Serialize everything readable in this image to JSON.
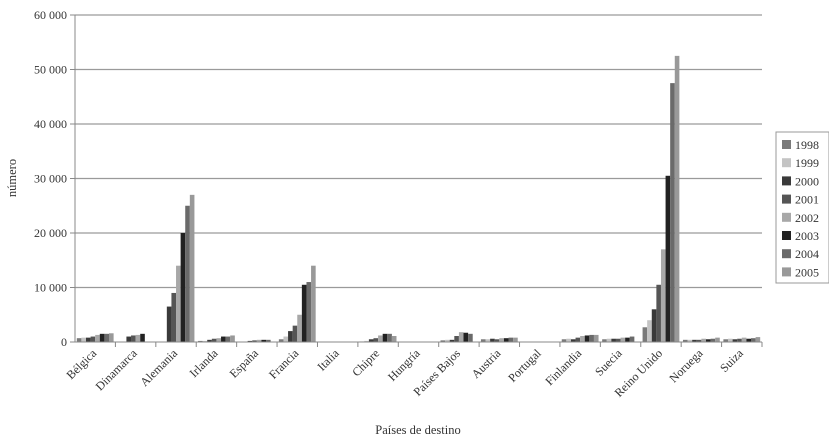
{
  "chart_data": {
    "type": "bar",
    "xlabel": "Países de destino",
    "ylabel": "número",
    "ylim": [
      0,
      60000
    ],
    "yticks": [
      "0",
      "10 000",
      "20 000",
      "30 000",
      "40 000",
      "50 000",
      "60 000"
    ],
    "grid": true,
    "legend_position": "right",
    "categories": [
      "Bélgica",
      "Dinamarca",
      "Alemania",
      "Irlanda",
      "España",
      "Francia",
      "Italia",
      "Chipre",
      "Hungría",
      "Países Bajos",
      "Austria",
      "Portugal",
      "Finlandia",
      "Suecia",
      "Reino Unido",
      "Noruega",
      "Suiza"
    ],
    "series": [
      {
        "name": "1998",
        "color": "#7a7a7a",
        "values": [
          700,
          0,
          0,
          200,
          0,
          500,
          0,
          100,
          0,
          300,
          500,
          0,
          500,
          500,
          2700,
          400,
          500
        ]
      },
      {
        "name": "1999",
        "color": "#c4c4c4",
        "values": [
          800,
          0,
          0,
          200,
          0,
          1000,
          0,
          200,
          0,
          400,
          500,
          0,
          600,
          600,
          4000,
          400,
          600
        ]
      },
      {
        "name": "2000",
        "color": "#3a3a3a",
        "values": [
          800,
          1000,
          6500,
          400,
          200,
          2000,
          0,
          500,
          0,
          400,
          600,
          0,
          500,
          600,
          6000,
          400,
          500
        ]
      },
      {
        "name": "2001",
        "color": "#555555",
        "values": [
          1000,
          1200,
          9000,
          600,
          300,
          3000,
          0,
          700,
          0,
          1100,
          500,
          0,
          800,
          600,
          10500,
          400,
          600
        ]
      },
      {
        "name": "2002",
        "color": "#a8a8a8",
        "values": [
          1300,
          1300,
          14000,
          700,
          400,
          5000,
          0,
          1200,
          0,
          1800,
          700,
          0,
          1100,
          800,
          17000,
          600,
          800
        ]
      },
      {
        "name": "2003",
        "color": "#222222",
        "values": [
          1500,
          1500,
          20000,
          1000,
          400,
          10500,
          0,
          1500,
          0,
          1700,
          700,
          0,
          1200,
          800,
          30500,
          500,
          600
        ]
      },
      {
        "name": "2004",
        "color": "#6a6a6a",
        "values": [
          1500,
          0,
          25000,
          1000,
          400,
          11000,
          0,
          1500,
          0,
          1500,
          800,
          0,
          1300,
          1000,
          47500,
          600,
          700
        ]
      },
      {
        "name": "2005",
        "color": "#999999",
        "values": [
          1600,
          0,
          27000,
          1200,
          0,
          14000,
          0,
          1100,
          0,
          0,
          800,
          0,
          1300,
          0,
          52500,
          800,
          900
        ]
      }
    ]
  }
}
